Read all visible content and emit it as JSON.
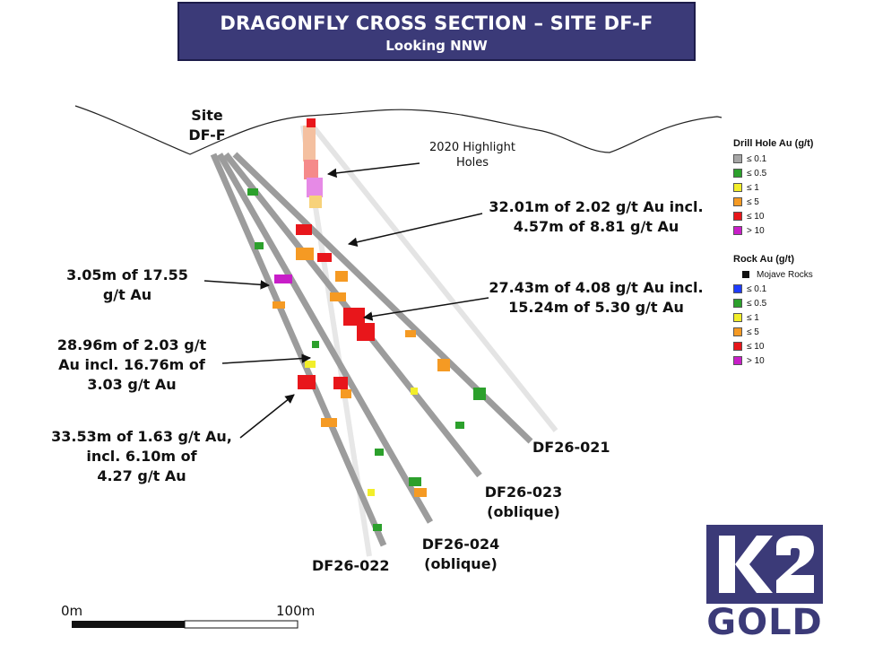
{
  "title": {
    "main": "DRAGONFLY CROSS SECTION – SITE DF-F",
    "sub": "Looking NNW"
  },
  "site_label": [
    "Site",
    "DF-F"
  ],
  "callouts": {
    "highlight_holes": [
      "2020 Highlight",
      "Holes"
    ],
    "c1": [
      "32.01m of 2.02 g/t Au incl.",
      "4.57m of 8.81 g/t Au"
    ],
    "c2": [
      "3.05m of 17.55",
      "g/t Au"
    ],
    "c3": [
      "27.43m of 4.08 g/t Au incl.",
      "15.24m of 5.30 g/t Au"
    ],
    "c4": [
      "28.96m of 2.03 g/t",
      "Au incl. 16.76m of",
      "3.03 g/t Au"
    ],
    "c5": [
      "33.53m of 1.63 g/t Au,",
      "incl. 6.10m of",
      "4.27 g/t Au"
    ]
  },
  "holes": {
    "df26_021": [
      "DF26-021"
    ],
    "df26_023": [
      "DF26-023",
      "(oblique)"
    ],
    "df26_024": [
      "DF26-024",
      "(oblique)"
    ],
    "df26_022": [
      "DF26-022"
    ]
  },
  "legend_drill": {
    "title": "Drill Hole Au (g/t)",
    "items": [
      {
        "label": "≤ 0.1",
        "color": "#a6a6a6"
      },
      {
        "label": "≤ 0.5",
        "color": "#2ca02c"
      },
      {
        "label": "≤ 1",
        "color": "#f2ee2a"
      },
      {
        "label": "≤ 5",
        "color": "#f59a23"
      },
      {
        "label": "≤ 10",
        "color": "#e8161b"
      },
      {
        "label": "> 10",
        "color": "#c81ec8"
      }
    ]
  },
  "legend_rock": {
    "title": "Rock Au (g/t)",
    "mojave": "Mojave Rocks",
    "items": [
      {
        "label": "≤ 0.1",
        "color": "#1e3cff"
      },
      {
        "label": "≤ 0.5",
        "color": "#2ca02c"
      },
      {
        "label": "≤ 1",
        "color": "#f2ee2a"
      },
      {
        "label": "≤ 5",
        "color": "#f59a23"
      },
      {
        "label": "≤ 10",
        "color": "#e8161b"
      },
      {
        "label": "> 10",
        "color": "#c81ec8"
      }
    ]
  },
  "scale": {
    "start": "0m",
    "end": "100m"
  },
  "logo": {
    "mark": "K2",
    "text": "GOLD",
    "color": "#3b3a78"
  }
}
